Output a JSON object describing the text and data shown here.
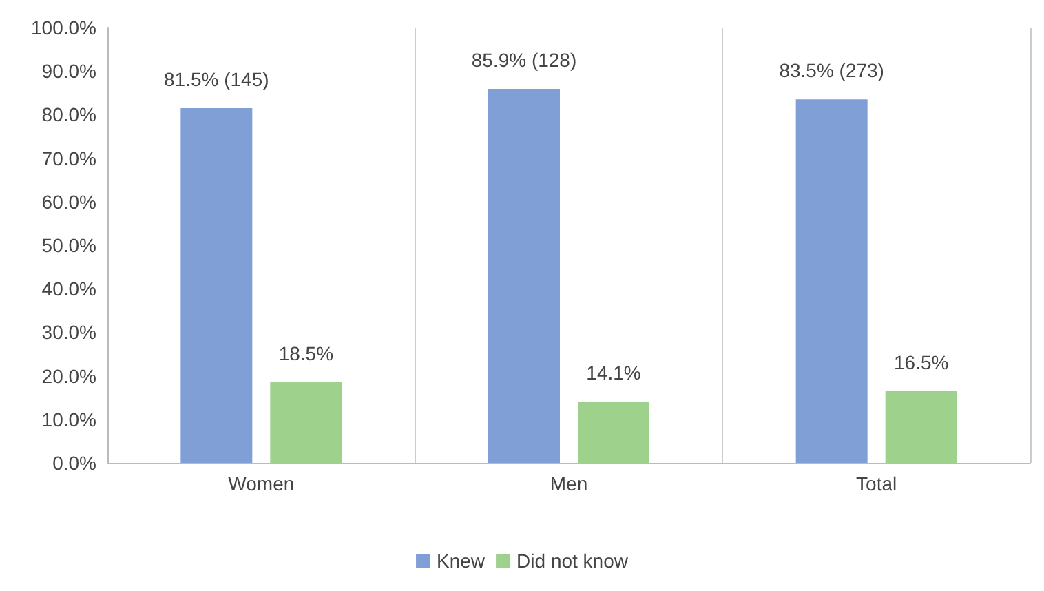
{
  "chart_data": {
    "type": "bar",
    "categories": [
      "Women",
      "Men",
      "Total"
    ],
    "series": [
      {
        "name": "Knew",
        "color": "#7f9fd6",
        "values": [
          81.5,
          85.9,
          83.5
        ],
        "value_labels": [
          "81.5% (145)",
          "85.9% (128)",
          "83.5% (273)"
        ]
      },
      {
        "name": "Did not know",
        "color": "#9dd18c",
        "values": [
          18.5,
          14.1,
          16.5
        ],
        "value_labels": [
          "18.5%",
          "14.1%",
          "16.5%"
        ]
      }
    ],
    "ylim": [
      0,
      100
    ],
    "yticks": [
      {
        "value": 0,
        "label": "0.0%"
      },
      {
        "value": 10,
        "label": "10.0%"
      },
      {
        "value": 20,
        "label": "20.0%"
      },
      {
        "value": 30,
        "label": "30.0%"
      },
      {
        "value": 40,
        "label": "40.0%"
      },
      {
        "value": 50,
        "label": "50.0%"
      },
      {
        "value": 60,
        "label": "60.0%"
      },
      {
        "value": 70,
        "label": "70.0%"
      },
      {
        "value": 80,
        "label": "80.0%"
      },
      {
        "value": 90,
        "label": "90.0%"
      },
      {
        "value": 100,
        "label": "100.0%"
      }
    ],
    "grid": "x",
    "legend": "bottom"
  }
}
